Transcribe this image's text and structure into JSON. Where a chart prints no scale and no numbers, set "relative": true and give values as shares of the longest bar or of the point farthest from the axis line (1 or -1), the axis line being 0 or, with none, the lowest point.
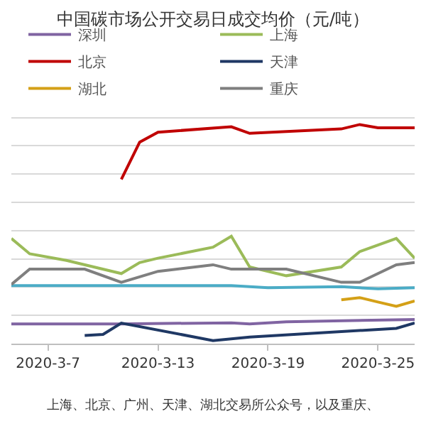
{
  "chart_data": {
    "type": "line",
    "title": "中国碳市场公开交易日成交均价（元/吨）",
    "relative": true,
    "grid": "y",
    "legend": "top",
    "marker": "none",
    "line_style": "solid",
    "xlim": [
      "2020-03-05",
      "2020-03-27"
    ],
    "xticks": [
      {
        "value": "2020-03-07",
        "label": "2020-3-7"
      },
      {
        "value": "2020-03-13",
        "label": "2020-3-13"
      },
      {
        "value": "2020-03-19",
        "label": "2020-3-19"
      },
      {
        "value": "2020-03-25",
        "label": "2020-3-25"
      }
    ],
    "series": [
      {
        "name": "深圳",
        "color": "#8064a2",
        "x": [
          "2020-03-05",
          "2020-03-11",
          "2020-03-17",
          "2020-03-18",
          "2020-03-20",
          "2020-03-27"
        ],
        "values": [
          0.09,
          0.09,
          0.095,
          0.09,
          0.1,
          0.11
        ]
      },
      {
        "name": "上海",
        "color": "#9bbb59",
        "x": [
          "2020-03-05",
          "2020-03-06",
          "2020-03-08",
          "2020-03-11",
          "2020-03-12",
          "2020-03-13",
          "2020-03-16",
          "2020-03-17",
          "2020-03-18",
          "2020-03-20",
          "2020-03-23",
          "2020-03-24",
          "2020-03-26",
          "2020-03-27"
        ],
        "values": [
          0.48,
          0.41,
          0.38,
          0.32,
          0.37,
          0.39,
          0.44,
          0.49,
          0.35,
          0.31,
          0.35,
          0.42,
          0.48,
          0.39
        ]
      },
      {
        "name": "北京",
        "color": "#c00000",
        "x": [
          "2020-03-11",
          "2020-03-12",
          "2020-03-13",
          "2020-03-17",
          "2020-03-18",
          "2020-03-23",
          "2020-03-24",
          "2020-03-25",
          "2020-03-27"
        ],
        "values": [
          0.75,
          0.92,
          0.965,
          0.99,
          0.96,
          0.98,
          1.0,
          0.985,
          0.985
        ]
      },
      {
        "color": "#4bacc6",
        "x": [
          "2020-03-05",
          "2020-03-09",
          "2020-03-17",
          "2020-03-19",
          "2020-03-23",
          "2020-03-25",
          "2020-03-27"
        ],
        "values": [
          0.265,
          0.265,
          0.265,
          0.255,
          0.26,
          0.25,
          0.255
        ]
      },
      {
        "name": "天津",
        "color": "#1f3864",
        "x": [
          "2020-03-09",
          "2020-03-10",
          "2020-03-11",
          "2020-03-16",
          "2020-03-18",
          "2020-03-26",
          "2020-03-27"
        ],
        "values": [
          0.037,
          0.042,
          0.094,
          0.014,
          0.03,
          0.07,
          0.094
        ]
      },
      {
        "name": "湖北",
        "color": "#d4a017",
        "x": [
          "2020-03-23",
          "2020-03-24",
          "2020-03-25",
          "2020-03-26",
          "2020-03-27"
        ],
        "values": [
          0.2,
          0.21,
          0.19,
          0.17,
          0.195
        ]
      },
      {
        "name": "重庆",
        "color": "#7f7f7f",
        "x": [
          "2020-03-05",
          "2020-03-06",
          "2020-03-09",
          "2020-03-11",
          "2020-03-13",
          "2020-03-16",
          "2020-03-17",
          "2020-03-20",
          "2020-03-23",
          "2020-03-24",
          "2020-03-26",
          "2020-03-27"
        ],
        "values": [
          0.27,
          0.34,
          0.34,
          0.28,
          0.33,
          0.36,
          0.34,
          0.34,
          0.28,
          0.28,
          0.36,
          0.37
        ]
      }
    ],
    "annotations": [
      "上海、北京、广州、天津、湖北交易所公众号，以及重庆、"
    ]
  }
}
